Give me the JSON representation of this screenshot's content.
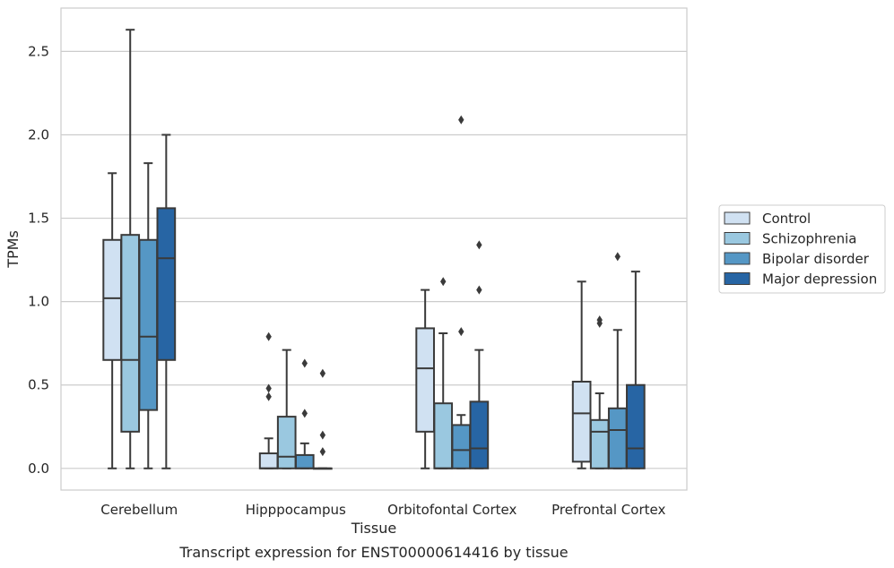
{
  "chart_data": {
    "type": "box",
    "title": "",
    "caption": "Transcript expression for ENST00000614416 by tissue",
    "xlabel": "Tissue",
    "ylabel": "TPMs",
    "ylim": [
      -0.13,
      2.76
    ],
    "yticks": [
      0.0,
      0.5,
      1.0,
      1.5,
      2.0,
      2.5
    ],
    "ytick_labels": [
      "0.0",
      "0.5",
      "1.0",
      "1.5",
      "2.0",
      "2.5"
    ],
    "grid": "horizontal",
    "legend_position": "right",
    "categories": [
      "Cerebellum",
      "Hipppocampus",
      "Orbitofontal Cortex",
      "Prefrontal Cortex"
    ],
    "series": [
      {
        "name": "Control",
        "color": "#d0e1f2",
        "boxes": [
          {
            "whisker_low": 0.0,
            "q1": 0.65,
            "median": 1.02,
            "q3": 1.37,
            "whisker_high": 1.77,
            "outliers": []
          },
          {
            "whisker_low": 0.0,
            "q1": 0.0,
            "median": 0.0,
            "q3": 0.09,
            "whisker_high": 0.18,
            "outliers": [
              0.43,
              0.48,
              0.79
            ]
          },
          {
            "whisker_low": 0.0,
            "q1": 0.22,
            "median": 0.6,
            "q3": 0.84,
            "whisker_high": 1.07,
            "outliers": []
          },
          {
            "whisker_low": 0.0,
            "q1": 0.04,
            "median": 0.33,
            "q3": 0.52,
            "whisker_high": 1.12,
            "outliers": []
          }
        ]
      },
      {
        "name": "Schizophrenia",
        "color": "#9ac8e0",
        "boxes": [
          {
            "whisker_low": 0.0,
            "q1": 0.22,
            "median": 0.65,
            "q3": 1.4,
            "whisker_high": 2.63,
            "outliers": []
          },
          {
            "whisker_low": 0.0,
            "q1": 0.0,
            "median": 0.07,
            "q3": 0.31,
            "whisker_high": 0.71,
            "outliers": []
          },
          {
            "whisker_low": 0.0,
            "q1": 0.0,
            "median": 0.0,
            "q3": 0.39,
            "whisker_high": 0.81,
            "outliers": [
              1.12
            ]
          },
          {
            "whisker_low": 0.0,
            "q1": 0.0,
            "median": 0.22,
            "q3": 0.29,
            "whisker_high": 0.45,
            "outliers": [
              0.87,
              0.89
            ]
          }
        ]
      },
      {
        "name": "Bipolar disorder",
        "color": "#5597c5",
        "boxes": [
          {
            "whisker_low": 0.0,
            "q1": 0.35,
            "median": 0.79,
            "q3": 1.37,
            "whisker_high": 1.83,
            "outliers": []
          },
          {
            "whisker_low": 0.0,
            "q1": 0.0,
            "median": 0.0,
            "q3": 0.08,
            "whisker_high": 0.15,
            "outliers": [
              0.33,
              0.63
            ]
          },
          {
            "whisker_low": 0.0,
            "q1": 0.0,
            "median": 0.11,
            "q3": 0.26,
            "whisker_high": 0.32,
            "outliers": [
              0.82,
              2.09
            ]
          },
          {
            "whisker_low": 0.0,
            "q1": 0.0,
            "median": 0.23,
            "q3": 0.36,
            "whisker_high": 0.83,
            "outliers": [
              1.27
            ]
          }
        ]
      },
      {
        "name": "Major depression",
        "color": "#2765a4",
        "boxes": [
          {
            "whisker_low": 0.0,
            "q1": 0.65,
            "median": 1.26,
            "q3": 1.56,
            "whisker_high": 2.0,
            "outliers": []
          },
          {
            "whisker_low": 0.0,
            "q1": 0.0,
            "median": 0.0,
            "q3": 0.0,
            "whisker_high": 0.0,
            "outliers": [
              0.1,
              0.2,
              0.57
            ]
          },
          {
            "whisker_low": 0.0,
            "q1": 0.0,
            "median": 0.12,
            "q3": 0.4,
            "whisker_high": 0.71,
            "outliers": [
              1.07,
              1.34
            ]
          },
          {
            "whisker_low": 0.0,
            "q1": 0.0,
            "median": 0.12,
            "q3": 0.5,
            "whisker_high": 1.18,
            "outliers": []
          }
        ]
      }
    ]
  }
}
